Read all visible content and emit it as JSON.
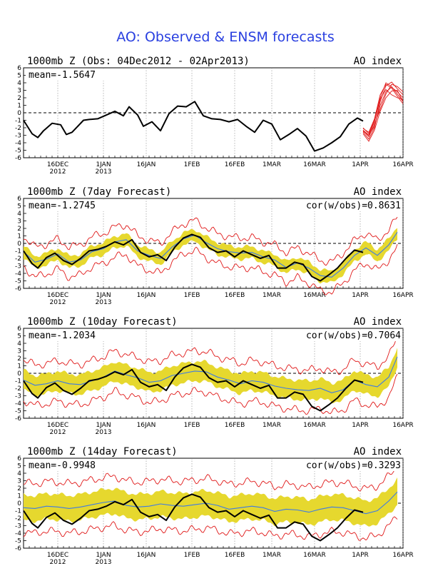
{
  "header": {
    "title": "AO: Observed & ENSM forecasts"
  },
  "colors": {
    "title": "#2a40e0",
    "band": "#e6d82e",
    "envelope": "#e01818",
    "mean": "#3c7ae6",
    "observed": "#000000"
  },
  "chart_data": [
    {
      "type": "line",
      "title": "1000mb Z (Obs: 04Dec2012 - 02Apr2013)",
      "right_label": "AO index",
      "mean_label": "mean=-1.5647",
      "cor_label": "",
      "ylim": [
        -6,
        6
      ],
      "xlim": [
        "2012-12-04",
        "2013-04-16"
      ],
      "y_ticks": [
        -6,
        -5,
        -4,
        -3,
        -2,
        -1,
        0,
        1,
        2,
        3,
        4,
        5,
        6
      ],
      "x_ticks": [
        {
          "date": "2012-12-16",
          "label": "16DEC",
          "year": "2012"
        },
        {
          "date": "2013-01-01",
          "label": "1JAN",
          "year": "2013"
        },
        {
          "date": "2013-01-16",
          "label": "16JAN",
          "year": ""
        },
        {
          "date": "2013-02-01",
          "label": "1FEB",
          "year": ""
        },
        {
          "date": "2013-02-16",
          "label": "16FEB",
          "year": ""
        },
        {
          "date": "2013-03-01",
          "label": "1MAR",
          "year": ""
        },
        {
          "date": "2013-03-16",
          "label": "16MAR",
          "year": ""
        },
        {
          "date": "2013-04-01",
          "label": "1APR",
          "year": ""
        },
        {
          "date": "2013-04-16",
          "label": "16APR",
          "year": ""
        }
      ],
      "zero_line": "dashed",
      "grid": "dotted vertical",
      "observed": {
        "dates": [
          "2012-12-04",
          "2012-12-07",
          "2012-12-09",
          "2012-12-11",
          "2012-12-14",
          "2012-12-17",
          "2012-12-19",
          "2012-12-21",
          "2012-12-23",
          "2012-12-25",
          "2012-12-27",
          "2012-12-30",
          "2013-01-02",
          "2013-01-05",
          "2013-01-08",
          "2013-01-10",
          "2013-01-13",
          "2013-01-15",
          "2013-01-18",
          "2013-01-21",
          "2013-01-24",
          "2013-01-27",
          "2013-01-30",
          "2013-02-02",
          "2013-02-05",
          "2013-02-08",
          "2013-02-11",
          "2013-02-14",
          "2013-02-17",
          "2013-02-20",
          "2013-02-23",
          "2013-02-26",
          "2013-03-01",
          "2013-03-04",
          "2013-03-07",
          "2013-03-10",
          "2013-03-13",
          "2013-03-16",
          "2013-03-19",
          "2013-03-22",
          "2013-03-25",
          "2013-03-28",
          "2013-03-31",
          "2013-04-02"
        ],
        "values": [
          -1.0,
          -2.8,
          -3.3,
          -2.4,
          -1.4,
          -1.6,
          -2.9,
          -2.6,
          -1.8,
          -1.0,
          -0.9,
          -0.8,
          -0.3,
          0.2,
          -0.4,
          0.8,
          -0.3,
          -1.8,
          -1.2,
          -2.4,
          -0.1,
          0.9,
          0.8,
          1.5,
          -0.4,
          -0.8,
          -0.9,
          -1.2,
          -0.9,
          -1.8,
          -2.6,
          -1.0,
          -1.5,
          -3.6,
          -2.9,
          -2.1,
          -3.1,
          -5.1,
          -4.7,
          -4.0,
          -3.2,
          -1.5,
          -0.7,
          -1.1
        ]
      },
      "forecast_members": {
        "dates": [
          "2013-04-02",
          "2013-04-04",
          "2013-04-06",
          "2013-04-08",
          "2013-04-10",
          "2013-04-12",
          "2013-04-14",
          "2013-04-16"
        ],
        "members": [
          [
            -2.3,
            -3.0,
            -1.8,
            1.0,
            2.8,
            3.4,
            2.8,
            2.0
          ],
          [
            -2.6,
            -3.5,
            -2.0,
            1.5,
            3.6,
            4.1,
            3.2,
            2.4
          ],
          [
            -2.0,
            -2.8,
            -1.0,
            2.0,
            4.0,
            3.5,
            2.5,
            1.5
          ],
          [
            -2.4,
            -3.2,
            -1.5,
            0.5,
            2.5,
            3.8,
            3.5,
            2.8
          ],
          [
            -2.8,
            -3.8,
            -2.3,
            0.2,
            2.0,
            2.9,
            3.0,
            1.5
          ],
          [
            -2.5,
            -3.0,
            -1.2,
            1.8,
            3.1,
            2.4,
            2.0,
            1.8
          ],
          [
            -2.1,
            -2.6,
            -0.8,
            2.4,
            3.8,
            3.3,
            2.2,
            1.2
          ]
        ]
      }
    },
    {
      "type": "line",
      "title": "1000mb Z (7day Forecast)",
      "right_label": "AO index",
      "mean_label": "mean=-1.2745",
      "cor_label": "cor(w/obs)=0.8631",
      "ylim": [
        -6,
        6
      ],
      "xlim": [
        "2012-12-04",
        "2013-04-16"
      ],
      "y_ticks": [
        -6,
        -5,
        -4,
        -3,
        -2,
        -1,
        0,
        1,
        2,
        3,
        4,
        5,
        6
      ],
      "x_ticks": [
        {
          "date": "2012-12-16",
          "label": "16DEC",
          "year": "2012"
        },
        {
          "date": "2013-01-01",
          "label": "1JAN",
          "year": "2013"
        },
        {
          "date": "2013-01-16",
          "label": "16JAN",
          "year": ""
        },
        {
          "date": "2013-02-01",
          "label": "1FEB",
          "year": ""
        },
        {
          "date": "2013-02-16",
          "label": "16FEB",
          "year": ""
        },
        {
          "date": "2013-03-01",
          "label": "1MAR",
          "year": ""
        },
        {
          "date": "2013-03-16",
          "label": "16MAR",
          "year": ""
        },
        {
          "date": "2013-04-01",
          "label": "1APR",
          "year": ""
        },
        {
          "date": "2013-04-16",
          "label": "16APR",
          "year": ""
        }
      ],
      "zero_line": "dashed",
      "grid": "dotted vertical",
      "observed": {
        "dates": [
          "2012-12-04",
          "2012-12-07",
          "2012-12-09",
          "2012-12-12",
          "2012-12-15",
          "2012-12-18",
          "2012-12-21",
          "2012-12-24",
          "2012-12-27",
          "2012-12-30",
          "2013-01-02",
          "2013-01-05",
          "2013-01-08",
          "2013-01-11",
          "2013-01-14",
          "2013-01-17",
          "2013-01-20",
          "2013-01-23",
          "2013-01-26",
          "2013-01-29",
          "2013-02-01",
          "2013-02-04",
          "2013-02-07",
          "2013-02-10",
          "2013-02-13",
          "2013-02-16",
          "2013-02-19",
          "2013-02-22",
          "2013-02-25",
          "2013-02-28",
          "2013-03-03",
          "2013-03-06",
          "2013-03-09",
          "2013-03-12",
          "2013-03-15",
          "2013-03-18",
          "2013-03-21",
          "2013-03-24",
          "2013-03-27",
          "2013-03-30",
          "2013-04-02"
        ],
        "values": [
          -1.0,
          -2.7,
          -3.3,
          -1.9,
          -1.3,
          -2.3,
          -2.8,
          -2.0,
          -1.0,
          -0.8,
          -0.4,
          0.2,
          -0.2,
          0.5,
          -1.2,
          -1.8,
          -1.5,
          -2.3,
          -0.5,
          0.7,
          1.2,
          0.8,
          -0.6,
          -1.2,
          -1.0,
          -1.8,
          -1.0,
          -1.5,
          -2.0,
          -1.6,
          -3.3,
          -3.3,
          -2.5,
          -2.8,
          -4.4,
          -5.0,
          -4.2,
          -3.3,
          -2.0,
          -0.9,
          -1.2
        ]
      },
      "ensemble_mean": {
        "dates": [
          "2012-12-04",
          "2012-12-08",
          "2012-12-12",
          "2012-12-16",
          "2012-12-20",
          "2012-12-24",
          "2012-12-28",
          "2013-01-01",
          "2013-01-05",
          "2013-01-09",
          "2013-01-13",
          "2013-01-17",
          "2013-01-21",
          "2013-01-25",
          "2013-01-29",
          "2013-02-02",
          "2013-02-06",
          "2013-02-10",
          "2013-02-14",
          "2013-02-18",
          "2013-02-22",
          "2013-02-26",
          "2013-03-02",
          "2013-03-06",
          "2013-03-10",
          "2013-03-14",
          "2013-03-18",
          "2013-03-22",
          "2013-03-26",
          "2013-03-30",
          "2013-04-03",
          "2013-04-07",
          "2013-04-11",
          "2013-04-14"
        ],
        "values": [
          -1.1,
          -2.5,
          -2.1,
          -1.4,
          -2.5,
          -2.2,
          -1.1,
          -0.7,
          0.2,
          0.5,
          -1.0,
          -1.6,
          -2.0,
          -0.5,
          0.6,
          1.1,
          0.1,
          -0.7,
          -1.1,
          -1.3,
          -1.2,
          -1.8,
          -2.2,
          -3.2,
          -2.6,
          -3.3,
          -4.3,
          -4.5,
          -3.3,
          -1.6,
          -0.6,
          -1.6,
          -0.2,
          1.5
        ]
      },
      "band_halfwidth": 0.8,
      "envelope_halfwidth": 2.0
    },
    {
      "type": "line",
      "title": "1000mb Z (10day Forecast)",
      "right_label": "AO index",
      "mean_label": "mean=-1.2034",
      "cor_label": "cor(w/obs)=0.7064",
      "ylim": [
        -6,
        6
      ],
      "xlim": [
        "2012-12-04",
        "2013-04-16"
      ],
      "y_ticks": [
        -6,
        -5,
        -4,
        -3,
        -2,
        -1,
        0,
        1,
        2,
        3,
        4,
        5,
        6
      ],
      "x_ticks": [
        {
          "date": "2012-12-16",
          "label": "16DEC",
          "year": "2012"
        },
        {
          "date": "2013-01-01",
          "label": "1JAN",
          "year": "2013"
        },
        {
          "date": "2013-01-16",
          "label": "16JAN",
          "year": ""
        },
        {
          "date": "2013-02-01",
          "label": "1FEB",
          "year": ""
        },
        {
          "date": "2013-02-16",
          "label": "16FEB",
          "year": ""
        },
        {
          "date": "2013-03-01",
          "label": "1MAR",
          "year": ""
        },
        {
          "date": "2013-03-16",
          "label": "16MAR",
          "year": ""
        },
        {
          "date": "2013-04-01",
          "label": "1APR",
          "year": ""
        },
        {
          "date": "2013-04-16",
          "label": "16APR",
          "year": ""
        }
      ],
      "zero_line": "dashed",
      "grid": "dotted vertical",
      "observed": {
        "dates": [
          "2012-12-04",
          "2012-12-07",
          "2012-12-09",
          "2012-12-12",
          "2012-12-15",
          "2012-12-18",
          "2012-12-21",
          "2012-12-24",
          "2012-12-27",
          "2012-12-30",
          "2013-01-02",
          "2013-01-05",
          "2013-01-08",
          "2013-01-11",
          "2013-01-14",
          "2013-01-17",
          "2013-01-20",
          "2013-01-23",
          "2013-01-26",
          "2013-01-29",
          "2013-02-01",
          "2013-02-04",
          "2013-02-07",
          "2013-02-10",
          "2013-02-13",
          "2013-02-16",
          "2013-02-19",
          "2013-02-22",
          "2013-02-25",
          "2013-02-28",
          "2013-03-03",
          "2013-03-06",
          "2013-03-09",
          "2013-03-12",
          "2013-03-15",
          "2013-03-18",
          "2013-03-21",
          "2013-03-24",
          "2013-03-27",
          "2013-03-30",
          "2013-04-02"
        ],
        "values": [
          -1.0,
          -2.7,
          -3.3,
          -1.9,
          -1.3,
          -2.3,
          -2.8,
          -2.0,
          -1.0,
          -0.8,
          -0.4,
          0.2,
          -0.2,
          0.5,
          -1.2,
          -1.8,
          -1.5,
          -2.3,
          -0.5,
          0.7,
          1.2,
          0.8,
          -0.6,
          -1.2,
          -1.0,
          -1.8,
          -1.0,
          -1.5,
          -2.0,
          -1.6,
          -3.3,
          -3.3,
          -2.5,
          -2.8,
          -4.4,
          -5.0,
          -4.2,
          -3.3,
          -2.0,
          -0.9,
          -1.2
        ]
      },
      "ensemble_mean": {
        "dates": [
          "2012-12-04",
          "2012-12-08",
          "2012-12-12",
          "2012-12-16",
          "2012-12-20",
          "2012-12-24",
          "2012-12-28",
          "2013-01-01",
          "2013-01-05",
          "2013-01-09",
          "2013-01-13",
          "2013-01-17",
          "2013-01-21",
          "2013-01-25",
          "2013-01-29",
          "2013-02-02",
          "2013-02-06",
          "2013-02-10",
          "2013-02-14",
          "2013-02-18",
          "2013-02-22",
          "2013-02-26",
          "2013-03-02",
          "2013-03-06",
          "2013-03-10",
          "2013-03-14",
          "2013-03-18",
          "2013-03-22",
          "2013-03-26",
          "2013-03-30",
          "2013-04-03",
          "2013-04-07",
          "2013-04-11",
          "2013-04-14"
        ],
        "values": [
          -0.9,
          -1.6,
          -1.4,
          -1.0,
          -1.4,
          -1.5,
          -1.0,
          -0.5,
          0.3,
          -0.2,
          -0.6,
          -1.2,
          -1.0,
          -0.3,
          0.0,
          0.3,
          0.2,
          -0.5,
          -0.9,
          -1.4,
          -1.0,
          -1.2,
          -1.7,
          -2.0,
          -2.2,
          -2.3,
          -2.0,
          -2.6,
          -2.2,
          -0.9,
          -1.5,
          -1.8,
          -0.5,
          2.2
        ]
      },
      "band_halfwidth": 1.3,
      "envelope_halfwidth": 2.7
    },
    {
      "type": "line",
      "title": "1000mb Z (14day Forecast)",
      "right_label": "AO index",
      "mean_label": "mean=-0.9948",
      "cor_label": "cor(w/obs)=0.3293",
      "ylim": [
        -6,
        6
      ],
      "xlim": [
        "2012-12-04",
        "2013-04-16"
      ],
      "y_ticks": [
        -6,
        -5,
        -4,
        -3,
        -2,
        -1,
        0,
        1,
        2,
        3,
        4,
        5,
        6
      ],
      "x_ticks": [
        {
          "date": "2012-12-16",
          "label": "16DEC",
          "year": "2012"
        },
        {
          "date": "2013-01-01",
          "label": "1JAN",
          "year": "2013"
        },
        {
          "date": "2013-01-16",
          "label": "16JAN",
          "year": ""
        },
        {
          "date": "2013-02-01",
          "label": "1FEB",
          "year": ""
        },
        {
          "date": "2013-02-16",
          "label": "16FEB",
          "year": ""
        },
        {
          "date": "2013-03-01",
          "label": "1MAR",
          "year": ""
        },
        {
          "date": "2013-03-16",
          "label": "16MAR",
          "year": ""
        },
        {
          "date": "2013-04-01",
          "label": "1APR",
          "year": ""
        },
        {
          "date": "2013-04-16",
          "label": "16APR",
          "year": ""
        }
      ],
      "zero_line": "dashed",
      "grid": "dotted vertical",
      "observed": {
        "dates": [
          "2012-12-04",
          "2012-12-07",
          "2012-12-09",
          "2012-12-12",
          "2012-12-15",
          "2012-12-18",
          "2012-12-21",
          "2012-12-24",
          "2012-12-27",
          "2012-12-30",
          "2013-01-02",
          "2013-01-05",
          "2013-01-08",
          "2013-01-11",
          "2013-01-14",
          "2013-01-17",
          "2013-01-20",
          "2013-01-23",
          "2013-01-26",
          "2013-01-29",
          "2013-02-01",
          "2013-02-04",
          "2013-02-07",
          "2013-02-10",
          "2013-02-13",
          "2013-02-16",
          "2013-02-19",
          "2013-02-22",
          "2013-02-25",
          "2013-02-28",
          "2013-03-03",
          "2013-03-06",
          "2013-03-09",
          "2013-03-12",
          "2013-03-15",
          "2013-03-18",
          "2013-03-21",
          "2013-03-24",
          "2013-03-27",
          "2013-03-30",
          "2013-04-02"
        ],
        "values": [
          -1.0,
          -2.7,
          -3.3,
          -1.9,
          -1.3,
          -2.3,
          -2.8,
          -2.0,
          -1.0,
          -0.8,
          -0.4,
          0.2,
          -0.2,
          0.5,
          -1.2,
          -1.8,
          -1.5,
          -2.3,
          -0.5,
          0.7,
          1.2,
          0.8,
          -0.6,
          -1.2,
          -1.0,
          -1.8,
          -1.0,
          -1.5,
          -2.0,
          -1.6,
          -3.3,
          -3.3,
          -2.5,
          -2.8,
          -4.4,
          -5.0,
          -4.2,
          -3.3,
          -2.0,
          -0.9,
          -1.2
        ]
      },
      "ensemble_mean": {
        "dates": [
          "2012-12-04",
          "2012-12-08",
          "2012-12-12",
          "2012-12-16",
          "2012-12-20",
          "2012-12-24",
          "2012-12-28",
          "2013-01-01",
          "2013-01-05",
          "2013-01-09",
          "2013-01-13",
          "2013-01-17",
          "2013-01-21",
          "2013-01-25",
          "2013-01-29",
          "2013-02-02",
          "2013-02-06",
          "2013-02-10",
          "2013-02-14",
          "2013-02-18",
          "2013-02-22",
          "2013-02-26",
          "2013-03-02",
          "2013-03-06",
          "2013-03-10",
          "2013-03-14",
          "2013-03-18",
          "2013-03-22",
          "2013-03-26",
          "2013-03-30",
          "2013-04-03",
          "2013-04-07",
          "2013-04-11",
          "2013-04-14"
        ],
        "values": [
          -0.6,
          -0.7,
          -0.4,
          -0.5,
          -0.7,
          -0.5,
          -0.2,
          0.1,
          0.3,
          -0.3,
          -0.5,
          -0.4,
          -0.1,
          -0.3,
          -0.4,
          -0.2,
          0.0,
          -0.3,
          -0.8,
          -0.6,
          -0.4,
          -0.6,
          -1.1,
          -0.8,
          -0.9,
          -1.2,
          -0.8,
          -0.5,
          -0.6,
          -1.0,
          -1.4,
          -1.0,
          0.3,
          1.5
        ]
      },
      "band_halfwidth": 1.7,
      "envelope_halfwidth": 3.3
    }
  ]
}
